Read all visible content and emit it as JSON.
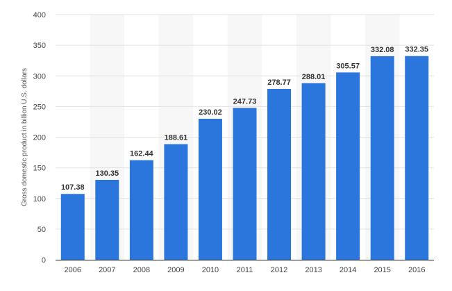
{
  "chart_data": {
    "type": "bar",
    "categories": [
      "2006",
      "2007",
      "2008",
      "2009",
      "2010",
      "2011",
      "2012",
      "2013",
      "2014",
      "2015",
      "2016"
    ],
    "values": [
      107.38,
      130.35,
      162.44,
      188.61,
      230.02,
      247.73,
      278.77,
      288.01,
      305.57,
      332.08,
      332.35
    ],
    "value_labels": [
      "107.38",
      "130.35",
      "162.44",
      "188.61",
      "230.02",
      "247.73",
      "278.77",
      "288.01",
      "305.57",
      "332.08",
      "332.35"
    ],
    "ylabel": "Gross domestic product in billion U.S. dollars",
    "xlabel": "",
    "title": "",
    "ylim": [
      0,
      400
    ],
    "yticks": [
      0,
      50,
      100,
      150,
      200,
      250,
      300,
      350,
      400
    ],
    "ytick_labels": [
      "0",
      "50",
      "100",
      "150",
      "200",
      "250",
      "300",
      "350",
      "400"
    ],
    "grid": "horizontal",
    "legend": "none",
    "colors": {
      "bar": "#2a76dd",
      "band": "#f7f7f7",
      "grid": "#e2e2e2",
      "axis": "#1a1a1a"
    }
  }
}
